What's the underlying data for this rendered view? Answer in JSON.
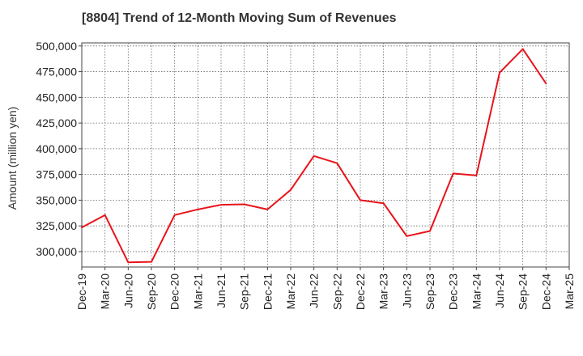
{
  "chart_data": {
    "type": "line",
    "title": "[8804]  Trend of 12-Month Moving Sum of Revenues",
    "xlabel": "",
    "ylabel": "Amount (million yen)",
    "x_tick_labels": [
      "Dec-19",
      "Mar-20",
      "Jun-20",
      "Sep-20",
      "Dec-20",
      "Mar-21",
      "Jun-21",
      "Sep-21",
      "Dec-21",
      "Mar-22",
      "Jun-22",
      "Sep-22",
      "Dec-22",
      "Mar-23",
      "Jun-23",
      "Sep-23",
      "Dec-23",
      "Mar-24",
      "Jun-24",
      "Sep-24",
      "Dec-24",
      "Mar-25"
    ],
    "y_tick_labels": [
      "300,000",
      "325,000",
      "350,000",
      "375,000",
      "400,000",
      "425,000",
      "450,000",
      "475,000",
      "500,000"
    ],
    "y_ticks": [
      300000,
      325000,
      350000,
      375000,
      400000,
      425000,
      450000,
      475000,
      500000
    ],
    "ylim": [
      285000,
      503000
    ],
    "grid": true,
    "series": [
      {
        "color": "#e8141b",
        "x": [
          "Dec-19",
          "Mar-20",
          "Jun-20",
          "Sep-20",
          "Dec-20",
          "Mar-21",
          "Jun-21",
          "Sep-21",
          "Dec-21",
          "Mar-22",
          "Jun-22",
          "Sep-22",
          "Dec-22",
          "Mar-23",
          "Jun-23",
          "Sep-23",
          "Dec-23",
          "Mar-24",
          "Jun-24",
          "Sep-24",
          "Dec-24"
        ],
        "values": [
          323500,
          335500,
          289500,
          290000,
          335500,
          341000,
          345500,
          346000,
          341000,
          360000,
          393000,
          386000,
          350000,
          347000,
          315000,
          320000,
          376000,
          374000,
          474000,
          497000,
          463500
        ]
      }
    ]
  }
}
